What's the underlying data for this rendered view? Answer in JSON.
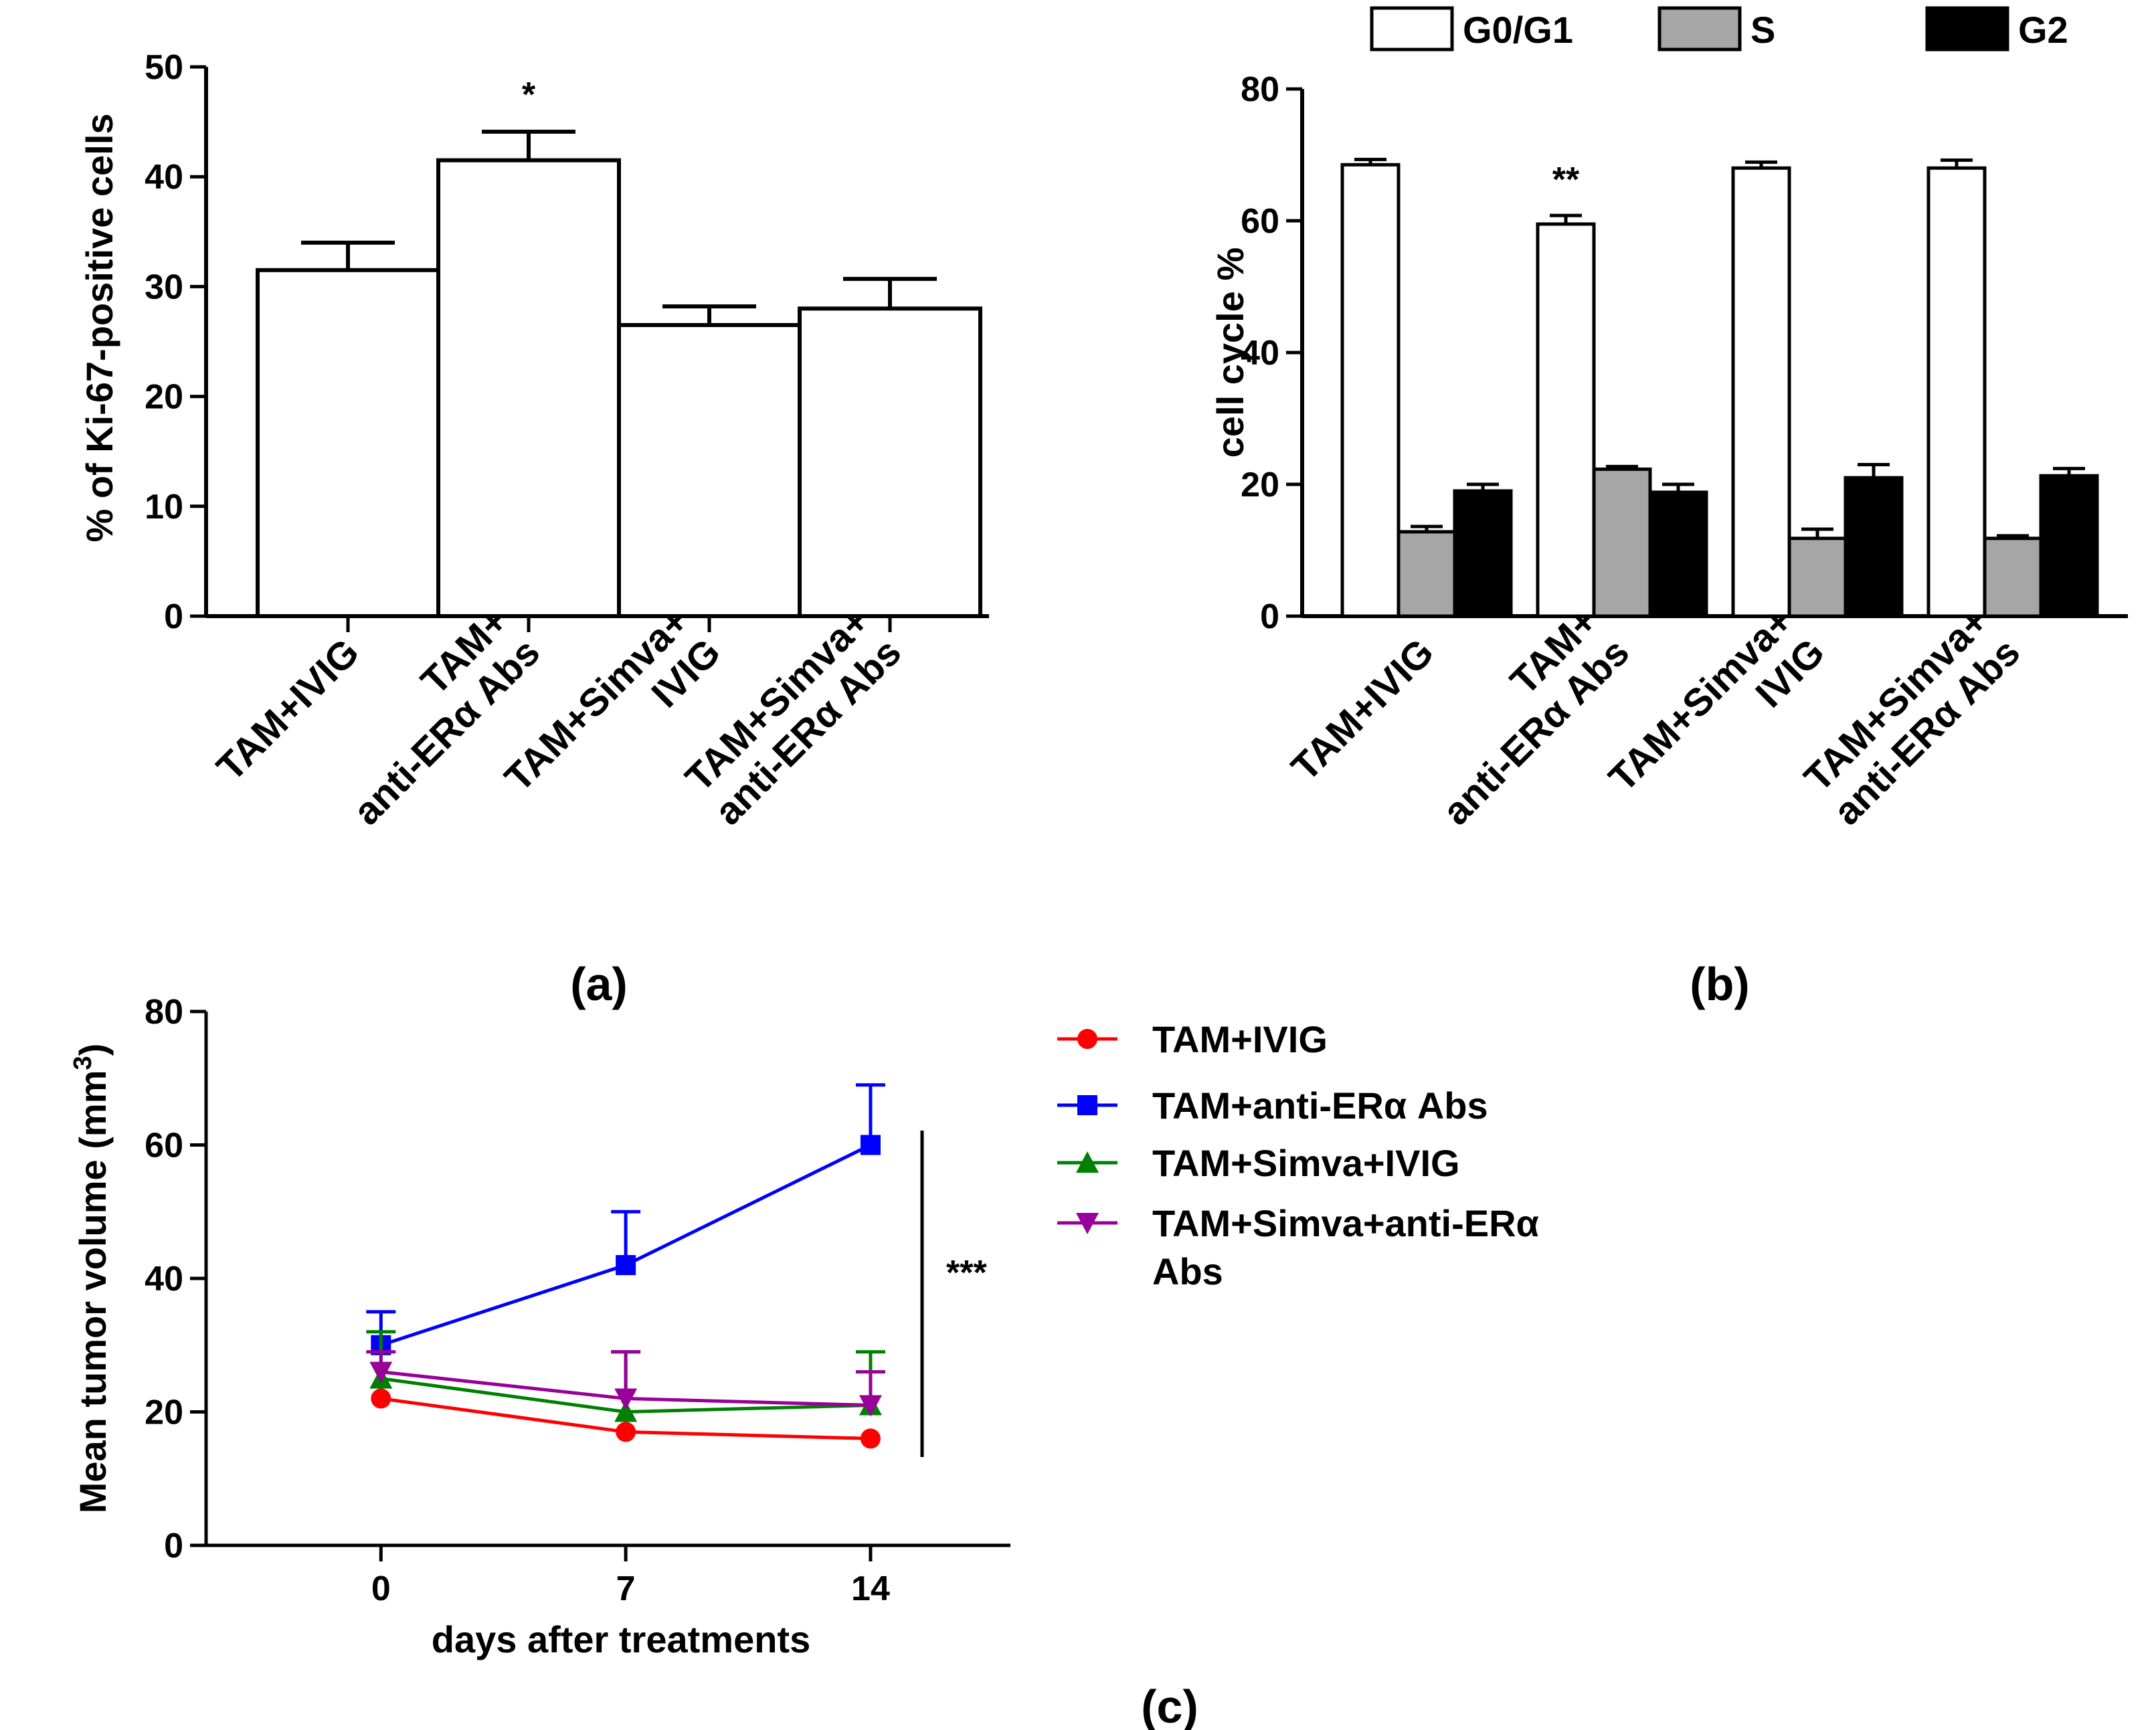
{
  "figure": {
    "panel_labels": [
      "(a)",
      "(b)",
      "(c)"
    ]
  },
  "chart_data": [
    {
      "panel": "(a)",
      "type": "bar",
      "title": "",
      "xlabel": "",
      "ylabel": "% of Ki-67-positive cells",
      "ylim": [
        0,
        50
      ],
      "yticks": [
        0,
        10,
        20,
        30,
        40,
        50
      ],
      "categories": [
        [
          "TAM+IVIG"
        ],
        [
          "TAM+",
          "anti-ERα Abs"
        ],
        [
          "TAM+Simva+",
          "IVIG"
        ],
        [
          "TAM+Simva+",
          "anti-ERα Abs"
        ]
      ],
      "values": [
        31.5,
        41.5,
        26.5,
        28
      ],
      "errors": [
        2.5,
        2.6,
        1.7,
        2.7
      ],
      "annotations": [
        {
          "category_index": 1,
          "text": "*"
        }
      ],
      "bar_color": "#ffffff"
    },
    {
      "panel": "(b)",
      "type": "bar",
      "title": "",
      "xlabel": "",
      "ylabel": "cell cycle %",
      "ylim": [
        0,
        80
      ],
      "yticks": [
        0,
        20,
        40,
        60,
        80
      ],
      "categories": [
        [
          "TAM+IVIG"
        ],
        [
          "TAM+",
          "anti-ERα Abs"
        ],
        [
          "TAM+Simva+",
          "IVIG"
        ],
        [
          "TAM+Simva+",
          "anti-ERα Abs"
        ]
      ],
      "series": [
        {
          "name": "G0/G1",
          "color": "#ffffff",
          "values": [
            68.5,
            59.5,
            68,
            68
          ],
          "errors": [
            0.8,
            1.3,
            0.9,
            1.2
          ]
        },
        {
          "name": "S",
          "color": "#a6a6a6",
          "values": [
            12.8,
            22.3,
            11.8,
            11.8
          ],
          "errors": [
            0.8,
            0.4,
            1.4,
            0.4
          ]
        },
        {
          "name": "G2",
          "color": "#000000",
          "values": [
            19,
            18.8,
            21,
            21.3
          ],
          "errors": [
            1.0,
            1.2,
            2.0,
            1.1
          ]
        }
      ],
      "annotations": [
        {
          "category_index": 1,
          "series": "G0/G1",
          "text": "**"
        }
      ],
      "legend": "top"
    },
    {
      "panel": "(c)",
      "type": "line",
      "title": "",
      "xlabel": "days after treatments",
      "ylabel_main": "Mean tumor volume (mm",
      "ylabel_sup": "3",
      "ylabel_close": ")",
      "ylim": [
        0,
        80
      ],
      "yticks": [
        0,
        20,
        40,
        60,
        80
      ],
      "xlim": [
        -5,
        18
      ],
      "x": [
        0,
        7,
        14
      ],
      "xticks": [
        0,
        7,
        14
      ],
      "series": [
        {
          "name": "TAM+IVIG",
          "color": "#ff0000",
          "marker": "circle",
          "values": [
            22,
            17,
            16
          ],
          "errors": [
            0,
            0,
            0
          ]
        },
        {
          "name": "TAM+anti-ERα Abs",
          "color": "#0000ff",
          "marker": "square",
          "values": [
            30,
            42,
            60
          ],
          "errors": [
            5,
            8,
            9
          ]
        },
        {
          "name": "TAM+Simva+IVIG",
          "color": "#008000",
          "marker": "triangle-up",
          "values": [
            25,
            20,
            21
          ],
          "errors": [
            7,
            9,
            8
          ]
        },
        {
          "name": "TAM+Simva+anti-ERα",
          "name_line2": "Abs",
          "color": "#990099",
          "marker": "triangle-down",
          "values": [
            26,
            22,
            21
          ],
          "errors": [
            3,
            7,
            5
          ]
        }
      ],
      "annotations": [
        {
          "text": "***",
          "note": "significance bracket across day 14 groups"
        }
      ],
      "legend": "right"
    }
  ]
}
